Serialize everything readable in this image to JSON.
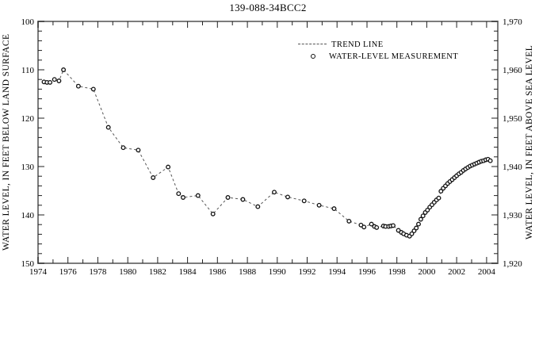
{
  "title": "139-088-34BCC2",
  "legend": {
    "trend_label": "TREND LINE",
    "measurement_label": "WATER-LEVEL MEASUREMENT"
  },
  "axes": {
    "left_label": "WATER LEVEL, IN FEET BELOW LAND SURFACE",
    "right_label": "WATER LEVEL, IN FEET ABOVE SEA LEVEL",
    "left_ticks": [
      "100",
      "110",
      "120",
      "130",
      "140",
      "150"
    ],
    "right_ticks": [
      "1,970",
      "1,960",
      "1,950",
      "1,940",
      "1,930",
      "1,920"
    ],
    "x_ticks": [
      "1974",
      "1976",
      "1978",
      "1980",
      "1982",
      "1984",
      "1986",
      "1988",
      "1990",
      "1992",
      "1994",
      "1996",
      "1998",
      "2000",
      "2002",
      "2004"
    ]
  },
  "colors": {
    "frame": "#7c7c7c",
    "tick": "#222222",
    "trend_line": "#555555",
    "marker_stroke": "#111111",
    "marker_fill": "#ffffff",
    "text": "#000000"
  },
  "chart_data": {
    "type": "line",
    "title": "139-088-34BCC2",
    "xlabel": "",
    "ylabel_left": "WATER LEVEL, IN FEET BELOW LAND SURFACE",
    "ylabel_right": "WATER LEVEL, IN FEET ABOVE SEA LEVEL",
    "xlim": [
      1974,
      2004.75
    ],
    "ylim_depth": [
      100,
      150
    ],
    "ylim_right_elevation": [
      1970,
      1920
    ],
    "depth_plus_elevation_constant": 2070,
    "x_major_tick_step": 2,
    "x_minor_tick_step": 1,
    "y_major_tick_step": 10,
    "y_minor_tick_step": 2,
    "grid": false,
    "legend_position": "top-center-inside",
    "series": [
      {
        "name": "WATER-LEVEL MEASUREMENT",
        "trend_line": "TREND LINE",
        "points": [
          [
            1974.4,
            112.5
          ],
          [
            1974.6,
            112.6
          ],
          [
            1974.8,
            112.6
          ],
          [
            1975.1,
            112.0
          ],
          [
            1975.4,
            112.3
          ],
          [
            1975.7,
            110.0
          ],
          [
            1976.7,
            113.4
          ],
          [
            1977.7,
            114.0
          ],
          [
            1978.7,
            121.9
          ],
          [
            1979.7,
            126.1
          ],
          [
            1980.7,
            126.6
          ],
          [
            1981.7,
            132.3
          ],
          [
            1982.7,
            130.1
          ],
          [
            1983.4,
            135.6
          ],
          [
            1983.7,
            136.4
          ],
          [
            1984.7,
            136.0
          ],
          [
            1985.7,
            139.8
          ],
          [
            1986.7,
            136.4
          ],
          [
            1987.7,
            136.8
          ],
          [
            1988.7,
            138.3
          ],
          [
            1989.8,
            135.3
          ],
          [
            1990.7,
            136.3
          ],
          [
            1991.8,
            137.1
          ],
          [
            1992.8,
            138.0
          ],
          [
            1993.8,
            138.7
          ],
          [
            1994.8,
            141.3
          ],
          [
            1995.6,
            142.1
          ],
          [
            1995.8,
            142.5
          ],
          [
            1996.3,
            141.9
          ],
          [
            1996.5,
            142.4
          ],
          [
            1996.65,
            142.6
          ],
          [
            1997.1,
            142.3
          ],
          [
            1997.25,
            142.4
          ],
          [
            1997.45,
            142.4
          ],
          [
            1997.6,
            142.3
          ],
          [
            1997.75,
            142.2
          ],
          [
            1998.1,
            143.2
          ],
          [
            1998.3,
            143.6
          ],
          [
            1998.45,
            143.9
          ],
          [
            1998.65,
            144.2
          ],
          [
            1998.85,
            144.4
          ],
          [
            1999.0,
            143.9
          ],
          [
            1999.15,
            143.3
          ],
          [
            1999.3,
            142.7
          ],
          [
            1999.45,
            141.9
          ],
          [
            1999.6,
            140.9
          ],
          [
            1999.75,
            140.2
          ],
          [
            1999.9,
            139.5
          ],
          [
            2000.05,
            139.0
          ],
          [
            2000.2,
            138.4
          ],
          [
            2000.35,
            137.9
          ],
          [
            2000.5,
            137.4
          ],
          [
            2000.65,
            136.9
          ],
          [
            2000.8,
            136.5
          ],
          [
            2000.95,
            135.1
          ],
          [
            2001.1,
            134.5
          ],
          [
            2001.25,
            134.0
          ],
          [
            2001.4,
            133.5
          ],
          [
            2001.55,
            133.1
          ],
          [
            2001.7,
            132.7
          ],
          [
            2001.85,
            132.3
          ],
          [
            2002.0,
            131.9
          ],
          [
            2002.15,
            131.5
          ],
          [
            2002.3,
            131.2
          ],
          [
            2002.45,
            130.8
          ],
          [
            2002.6,
            130.5
          ],
          [
            2002.75,
            130.2
          ],
          [
            2002.9,
            129.9
          ],
          [
            2003.05,
            129.7
          ],
          [
            2003.2,
            129.5
          ],
          [
            2003.35,
            129.3
          ],
          [
            2003.5,
            129.1
          ],
          [
            2003.65,
            128.9
          ],
          [
            2003.8,
            128.8
          ],
          [
            2003.95,
            128.6
          ],
          [
            2004.1,
            128.5
          ],
          [
            2004.25,
            128.8
          ]
        ]
      }
    ]
  }
}
